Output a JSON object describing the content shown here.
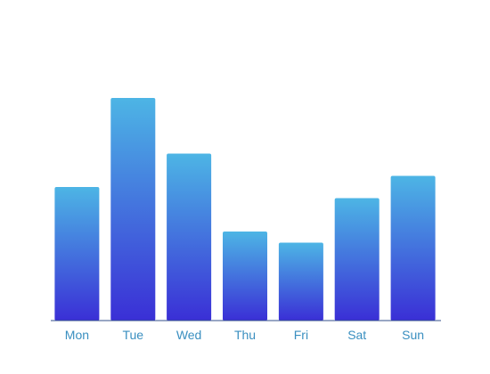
{
  "chart_data": {
    "type": "bar",
    "categories": [
      "Mon",
      "Tue",
      "Wed",
      "Thu",
      "Fri",
      "Sat",
      "Sun"
    ],
    "values": [
      120,
      200,
      150,
      80,
      70,
      110,
      130
    ],
    "ylim": [
      0,
      240
    ],
    "grid": false,
    "legend": "none",
    "title": "",
    "xlabel": "",
    "ylabel": "",
    "colors": {
      "bar_top": "#4db5e5",
      "bar_bottom": "#3a2fd6",
      "axis": "#334f8a",
      "tick_label": "#3a8fc0"
    }
  }
}
